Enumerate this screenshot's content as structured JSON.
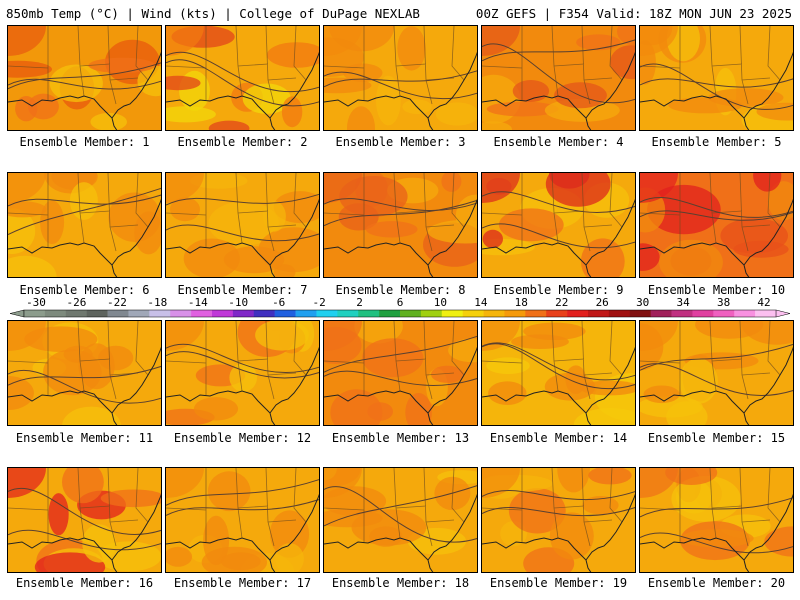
{
  "header": {
    "left": "850mb Temp (°C) | Wind (kts) | College of DuPage NEXLAB",
    "right": "00Z GEFS | F354 Valid: 18Z MON JUN 23 2025"
  },
  "panels": [
    {
      "label": "Ensemble Member: 1",
      "base": "#f2980a",
      "hot": [
        "#e85a0e",
        "#f07018"
      ],
      "cool": "#f5c10b"
    },
    {
      "label": "Ensemble Member: 2",
      "base": "#f5a90c",
      "hot": [
        "#f27a10",
        "#e2451a"
      ],
      "cool": "#f2d80a"
    },
    {
      "label": "Ensemble Member: 3",
      "base": "#f5a90c",
      "hot": [
        "#f28a0d",
        "#f28a0d"
      ],
      "cool": "#f5b50b"
    },
    {
      "label": "Ensemble Member: 4",
      "base": "#f28a0d",
      "hot": [
        "#e4551a",
        "#f07018"
      ],
      "cool": "#f5a90c"
    },
    {
      "label": "Ensemble Member: 5",
      "base": "#f5a90c",
      "hot": [
        "#f28a0d",
        "#f28a0d"
      ],
      "cool": "#f5c10b"
    },
    {
      "label": "Ensemble Member: 6",
      "base": "#f5a90c",
      "hot": [
        "#f28a0d",
        "#f28a0d"
      ],
      "cool": "#f5c10b"
    },
    {
      "label": "Ensemble Member: 7",
      "base": "#f5a90c",
      "hot": [
        "#f28a0d",
        "#f28a0d"
      ],
      "cool": "#f5b50b"
    },
    {
      "label": "Ensemble Member: 8",
      "base": "#f28a0d",
      "hot": [
        "#e8601a",
        "#f07018"
      ],
      "cool": "#f5a90c"
    },
    {
      "label": "Ensemble Member: 9",
      "base": "#f5a90c",
      "hot": [
        "#dc2a1c",
        "#f07018"
      ],
      "cool": "#f5c10b"
    },
    {
      "label": "Ensemble Member: 10",
      "base": "#f07018",
      "hot": [
        "#e2201e",
        "#e8501a"
      ],
      "cool": "#f28a0d"
    },
    {
      "label": "Ensemble Member: 11",
      "base": "#f5a90c",
      "hot": [
        "#f28a0d",
        "#f28a0d"
      ],
      "cool": "#f5c10b"
    },
    {
      "label": "Ensemble Member: 12",
      "base": "#f5a90c",
      "hot": [
        "#f28a0d",
        "#f07018"
      ],
      "cool": "#f5c10b"
    },
    {
      "label": "Ensemble Member: 13",
      "base": "#f28a0d",
      "hot": [
        "#f07018",
        "#f07018"
      ],
      "cool": "#f5a90c"
    },
    {
      "label": "Ensemble Member: 14",
      "base": "#f5b50b",
      "hot": [
        "#f28a0d",
        "#f28a0d"
      ],
      "cool": "#f5c90b"
    },
    {
      "label": "Ensemble Member: 15",
      "base": "#f5a90c",
      "hot": [
        "#f28a0d",
        "#f28a0d"
      ],
      "cool": "#f5c10b"
    },
    {
      "label": "Ensemble Member: 16",
      "base": "#f5a90c",
      "hot": [
        "#e2201e",
        "#f07018"
      ],
      "cool": "#f5c10b"
    },
    {
      "label": "Ensemble Member: 17",
      "base": "#f5a90c",
      "hot": [
        "#f28a0d",
        "#f28a0d"
      ],
      "cool": "#f5b50b"
    },
    {
      "label": "Ensemble Member: 18",
      "base": "#f5a90c",
      "hot": [
        "#f28a0d",
        "#f28a0d"
      ],
      "cool": "#f5c10b"
    },
    {
      "label": "Ensemble Member: 19",
      "base": "#f5a90c",
      "hot": [
        "#f28a0d",
        "#f07018"
      ],
      "cool": "#f5b50b"
    },
    {
      "label": "Ensemble Member: 20",
      "base": "#f5a90c",
      "hot": [
        "#f07018",
        "#f28a0d"
      ],
      "cool": "#f5c10b"
    }
  ],
  "colorbar": {
    "labels": [
      "-30",
      "-26",
      "-22",
      "-18",
      "-14",
      "-10",
      "-6",
      "-2",
      "2",
      "6",
      "10",
      "14",
      "18",
      "22",
      "26",
      "30",
      "34",
      "38",
      "42"
    ],
    "colors": [
      "#8c9c8c",
      "#7d8a7d",
      "#6f786f",
      "#5e645e",
      "#808890",
      "#a0a8b8",
      "#c8c0e8",
      "#d890e8",
      "#e060e0",
      "#c038d8",
      "#8028c8",
      "#4030c0",
      "#2060e0",
      "#20a0f0",
      "#20d0f0",
      "#20d0c0",
      "#20c080",
      "#20a040",
      "#60b020",
      "#a0d010",
      "#f0f010",
      "#f5d00b",
      "#f5b50b",
      "#f59a0b",
      "#f07018",
      "#e8401a",
      "#e2201e",
      "#c01818",
      "#a01010",
      "#801010",
      "#a0205a",
      "#c03080",
      "#e040a0",
      "#f060c0",
      "#f890e0",
      "#fcc0f0"
    ]
  }
}
